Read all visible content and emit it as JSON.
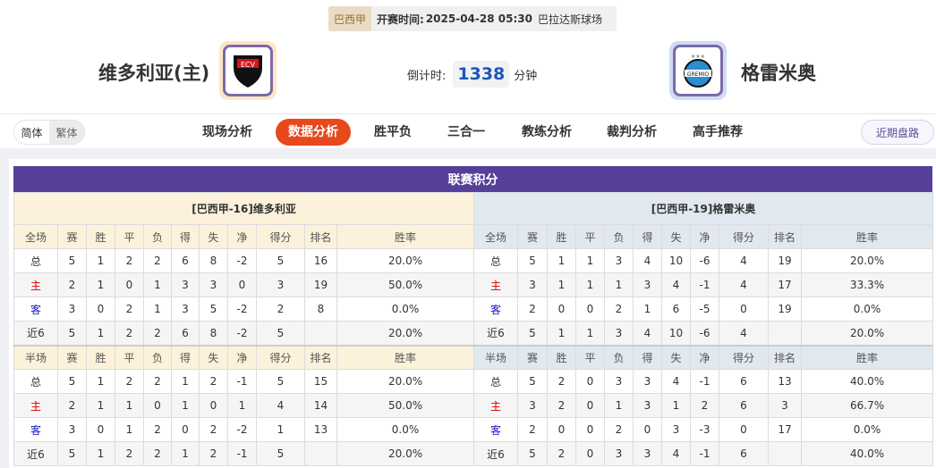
{
  "match": {
    "league": "巴西甲",
    "time_label": "开赛时间:",
    "time": "2025-04-28 05:30",
    "venue": "巴拉达斯球场"
  },
  "home": {
    "name": "维多利亚(主)",
    "logo_text": "ECV"
  },
  "away": {
    "name": "格雷米奥",
    "logo_text": "GREMIO"
  },
  "countdown": {
    "label": "倒计时:",
    "value": "1338",
    "unit": "分钟"
  },
  "lang": {
    "simplified": "简体",
    "traditional": "繁体"
  },
  "nav": [
    "现场分析",
    "数据分析",
    "胜平负",
    "三合一",
    "教练分析",
    "裁判分析",
    "高手推荐"
  ],
  "nav_active": 1,
  "recent_button": "近期盘路",
  "section_title": "联赛积分",
  "colors": {
    "accent": "#e8481b",
    "title_bar": "#553f99",
    "home_color": "#d40000",
    "away_color": "#1b1bc8"
  },
  "tables": [
    {
      "team": "[巴西甲-16]维多利亚",
      "full": {
        "header": [
          "全场",
          "赛",
          "胜",
          "平",
          "负",
          "得",
          "失",
          "净",
          "得分",
          "排名",
          "胜率"
        ],
        "rows": [
          [
            "总",
            "5",
            "1",
            "2",
            "2",
            "6",
            "8",
            "-2",
            "5",
            "16",
            "20.0%"
          ],
          [
            "主",
            "2",
            "1",
            "0",
            "1",
            "3",
            "3",
            "0",
            "3",
            "19",
            "50.0%"
          ],
          [
            "客",
            "3",
            "0",
            "2",
            "1",
            "3",
            "5",
            "-2",
            "2",
            "8",
            "0.0%"
          ],
          [
            "近6",
            "5",
            "1",
            "2",
            "2",
            "6",
            "8",
            "-2",
            "5",
            "",
            "20.0%"
          ]
        ]
      },
      "half": {
        "header": [
          "半场",
          "赛",
          "胜",
          "平",
          "负",
          "得",
          "失",
          "净",
          "得分",
          "排名",
          "胜率"
        ],
        "rows": [
          [
            "总",
            "5",
            "1",
            "2",
            "2",
            "1",
            "2",
            "-1",
            "5",
            "15",
            "20.0%"
          ],
          [
            "主",
            "2",
            "1",
            "1",
            "0",
            "1",
            "0",
            "1",
            "4",
            "14",
            "50.0%"
          ],
          [
            "客",
            "3",
            "0",
            "1",
            "2",
            "0",
            "2",
            "-2",
            "1",
            "13",
            "0.0%"
          ],
          [
            "近6",
            "5",
            "1",
            "2",
            "2",
            "1",
            "2",
            "-1",
            "5",
            "",
            "20.0%"
          ]
        ]
      }
    },
    {
      "team": "[巴西甲-19]格雷米奥",
      "full": {
        "header": [
          "全场",
          "赛",
          "胜",
          "平",
          "负",
          "得",
          "失",
          "净",
          "得分",
          "排名",
          "胜率"
        ],
        "rows": [
          [
            "总",
            "5",
            "1",
            "1",
            "3",
            "4",
            "10",
            "-6",
            "4",
            "19",
            "20.0%"
          ],
          [
            "主",
            "3",
            "1",
            "1",
            "1",
            "3",
            "4",
            "-1",
            "4",
            "17",
            "33.3%"
          ],
          [
            "客",
            "2",
            "0",
            "0",
            "2",
            "1",
            "6",
            "-5",
            "0",
            "19",
            "0.0%"
          ],
          [
            "近6",
            "5",
            "1",
            "1",
            "3",
            "4",
            "10",
            "-6",
            "4",
            "",
            "20.0%"
          ]
        ]
      },
      "half": {
        "header": [
          "半场",
          "赛",
          "胜",
          "平",
          "负",
          "得",
          "失",
          "净",
          "得分",
          "排名",
          "胜率"
        ],
        "rows": [
          [
            "总",
            "5",
            "2",
            "0",
            "3",
            "3",
            "4",
            "-1",
            "6",
            "13",
            "40.0%"
          ],
          [
            "主",
            "3",
            "2",
            "0",
            "1",
            "3",
            "1",
            "2",
            "6",
            "3",
            "66.7%"
          ],
          [
            "客",
            "2",
            "0",
            "0",
            "2",
            "0",
            "3",
            "-3",
            "0",
            "17",
            "0.0%"
          ],
          [
            "近6",
            "5",
            "2",
            "0",
            "3",
            "3",
            "4",
            "-1",
            "6",
            "",
            "40.0%"
          ]
        ]
      }
    }
  ]
}
